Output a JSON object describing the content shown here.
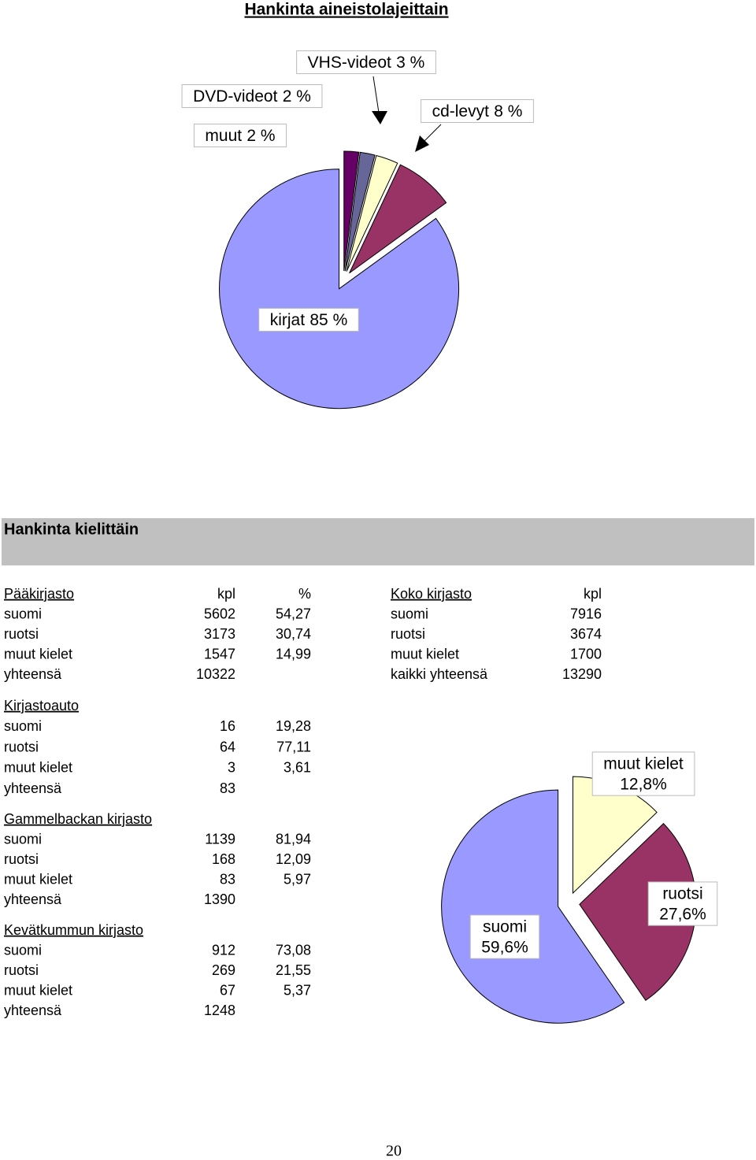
{
  "chart_data": [
    {
      "type": "pie",
      "title": "Hankinta aineistolajeittain",
      "categories": [
        "muut",
        "DVD-videot",
        "VHS-videot",
        "cd-levyt",
        "kirjat"
      ],
      "values": [
        2,
        2,
        3,
        8,
        85
      ],
      "value_labels": [
        "2 %",
        "2 %",
        "3 %",
        "8 %",
        "85 %"
      ],
      "colors": [
        "#660066",
        "#666699",
        "#ffffcc",
        "#993366",
        "#9999ff"
      ]
    },
    {
      "type": "pie",
      "categories": [
        "muut kielet",
        "ruotsi",
        "suomi"
      ],
      "values": [
        12.8,
        27.6,
        59.6
      ],
      "value_labels": [
        "12,8%",
        "27,6%",
        "59,6%"
      ],
      "colors": [
        "#ffffcc",
        "#993366",
        "#9999ff"
      ]
    }
  ],
  "section": "Hankinta kielittäin",
  "tables": [
    {
      "title": "Pääkirjasto",
      "headers": [
        "kpl",
        "%"
      ],
      "rows": [
        [
          "suomi",
          "5602",
          "54,27"
        ],
        [
          "ruotsi",
          "3173",
          "30,74"
        ],
        [
          "muut kielet",
          "1547",
          "14,99"
        ],
        [
          "yhteensä",
          "10322"
        ]
      ]
    },
    {
      "title": "Koko kirjasto",
      "headers": [
        "kpl"
      ],
      "rows": [
        [
          "suomi",
          "7916"
        ],
        [
          "ruotsi",
          "3674"
        ],
        [
          "muut kielet",
          "1700"
        ],
        [
          "kaikki yhteensä",
          "13290"
        ]
      ]
    },
    {
      "title": "Kirjastoauto",
      "rows": [
        [
          "suomi",
          "16",
          "19,28"
        ],
        [
          "ruotsi",
          "64",
          "77,11"
        ],
        [
          "muut kielet",
          "3",
          "3,61"
        ],
        [
          "yhteensä",
          "83"
        ]
      ]
    },
    {
      "title": "Gammelbackan kirjasto",
      "rows": [
        [
          "suomi",
          "1139",
          "81,94"
        ],
        [
          "ruotsi",
          "168",
          "12,09"
        ],
        [
          "muut kielet",
          "83",
          "5,97"
        ],
        [
          "yhteensä",
          "1390"
        ]
      ]
    },
    {
      "title": "Kevätkummun kirjasto",
      "rows": [
        [
          "suomi",
          "912",
          "73,08"
        ],
        [
          "ruotsi",
          "269",
          "21,55"
        ],
        [
          "muut kielet",
          "67",
          "5,37"
        ],
        [
          "yhteensä",
          "1248"
        ]
      ]
    }
  ],
  "page_number": "20"
}
